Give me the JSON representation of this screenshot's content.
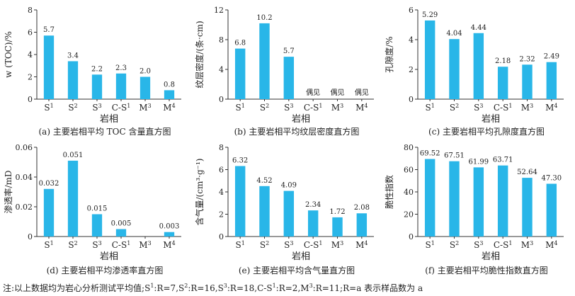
{
  "figure": {
    "bar_color": "#29b6e8",
    "note": {
      "prefix": "注:以上数据均为岩心分析测试平均值;",
      "entries": [
        {
          "base": "S",
          "sup": "1",
          "text": ":R=7,"
        },
        {
          "base": "S",
          "sup": "2",
          "text": ":R=16,"
        },
        {
          "base": "S",
          "sup": "3",
          "text": ":R=18,"
        },
        {
          "base": "C-S",
          "sup": "1",
          "text": ":R=2,"
        },
        {
          "base": "M",
          "sup": "3",
          "text": ":R=11;"
        }
      ],
      "suffix": "R=a 表示样品数为 a"
    }
  },
  "chart_data": [
    {
      "type": "bar",
      "caption": "(a) 主要岩相平均 TOC 含量直方图",
      "ylabel": "w (TOC)/%",
      "xlabel": "岩相",
      "categories": [
        {
          "base": "S",
          "sup": "1"
        },
        {
          "base": "S",
          "sup": "2"
        },
        {
          "base": "S",
          "sup": "3"
        },
        {
          "base": "C-S",
          "sup": "1"
        },
        {
          "base": "M",
          "sup": "3"
        },
        {
          "base": "M",
          "sup": "4"
        }
      ],
      "values": [
        5.7,
        3.4,
        2.2,
        2.3,
        2.0,
        0.8
      ],
      "labels": [
        "5.7",
        "3.4",
        "2.2",
        "2.3",
        "2.0",
        "0.8"
      ],
      "ylim": [
        0,
        8
      ],
      "yticks": [
        0,
        2,
        4,
        6,
        8
      ],
      "ytick_labels": [
        "0",
        "2",
        "4",
        "6",
        "8"
      ]
    },
    {
      "type": "bar",
      "caption": "(b) 主要岩相平均纹层密度直方图",
      "ylabel": "纹层密度/(条·cm)",
      "xlabel": "岩相",
      "categories": [
        {
          "base": "S",
          "sup": "1"
        },
        {
          "base": "S",
          "sup": "2"
        },
        {
          "base": "S",
          "sup": "3"
        },
        {
          "base": "C-S",
          "sup": "1"
        },
        {
          "base": "M",
          "sup": "3"
        },
        {
          "base": "M",
          "sup": "4"
        }
      ],
      "values": [
        6.8,
        10.2,
        5.7,
        null,
        null,
        null
      ],
      "labels": [
        "6.8",
        "10.2",
        "5.7",
        "偶见",
        "偶见",
        "偶见"
      ],
      "ylim": [
        0,
        12
      ],
      "yticks": [
        0,
        4,
        8,
        12
      ],
      "ytick_labels": [
        "0",
        "4",
        "8",
        "12"
      ]
    },
    {
      "type": "bar",
      "caption": "(c) 主要岩相平均孔隙度直方图",
      "ylabel": "孔隙度/%",
      "xlabel": "岩相",
      "categories": [
        {
          "base": "S",
          "sup": "1"
        },
        {
          "base": "S",
          "sup": "2"
        },
        {
          "base": "S",
          "sup": "3"
        },
        {
          "base": "C-S",
          "sup": "1"
        },
        {
          "base": "M",
          "sup": "3"
        },
        {
          "base": "M",
          "sup": "4"
        }
      ],
      "values": [
        5.29,
        4.04,
        4.44,
        2.18,
        2.32,
        2.49
      ],
      "labels": [
        "5.29",
        "4.04",
        "4.44",
        "2.18",
        "2.32",
        "2.49"
      ],
      "ylim": [
        0,
        6
      ],
      "yticks": [
        0,
        2,
        4,
        6
      ],
      "ytick_labels": [
        "0",
        "2",
        "4",
        "6"
      ]
    },
    {
      "type": "bar",
      "caption": "(d) 主要岩相平均渗透率直方图",
      "ylabel": "渗透率/mD",
      "xlabel": "岩相",
      "categories": [
        {
          "base": "S",
          "sup": "1"
        },
        {
          "base": "S",
          "sup": "2"
        },
        {
          "base": "S",
          "sup": "3"
        },
        {
          "base": "C-S",
          "sup": "1"
        },
        {
          "base": "M",
          "sup": "3"
        },
        {
          "base": "M",
          "sup": "4"
        }
      ],
      "values": [
        0.032,
        0.051,
        0.015,
        0.005,
        null,
        0.003
      ],
      "labels": [
        "0.032",
        "0.051",
        "0.015",
        "0.005",
        "",
        "0.003"
      ],
      "ylim": [
        0,
        0.06
      ],
      "yticks": [
        0,
        0.02,
        0.04,
        0.06
      ],
      "ytick_labels": [
        "0",
        "0.02",
        "0.04",
        "0.06"
      ]
    },
    {
      "type": "bar",
      "caption": "(e) 主要岩相平均含气量直方图",
      "ylabel": "含气量/(cm³·g⁻¹)",
      "xlabel": "岩相",
      "categories": [
        {
          "base": "S",
          "sup": "1"
        },
        {
          "base": "S",
          "sup": "2"
        },
        {
          "base": "S",
          "sup": "3"
        },
        {
          "base": "C-S",
          "sup": "1"
        },
        {
          "base": "M",
          "sup": "3"
        },
        {
          "base": "M",
          "sup": "4"
        }
      ],
      "values": [
        6.32,
        4.52,
        4.09,
        2.34,
        1.72,
        2.08
      ],
      "labels": [
        "6.32",
        "4.52",
        "4.09",
        "2.34",
        "1.72",
        "2.08"
      ],
      "ylim": [
        0,
        8
      ],
      "yticks": [
        0,
        2,
        4,
        6,
        8
      ],
      "ytick_labels": [
        "0",
        "2",
        "4",
        "6",
        "8"
      ]
    },
    {
      "type": "bar",
      "caption": "(f) 主要岩相平均脆性指数直方图",
      "ylabel": "脆性指数",
      "xlabel": "岩相",
      "categories": [
        {
          "base": "S",
          "sup": "1"
        },
        {
          "base": "S",
          "sup": "2"
        },
        {
          "base": "S",
          "sup": "3"
        },
        {
          "base": "C-S",
          "sup": "1"
        },
        {
          "base": "M",
          "sup": "3"
        },
        {
          "base": "M",
          "sup": "4"
        }
      ],
      "values": [
        69.52,
        67.51,
        61.99,
        63.71,
        52.64,
        47.3
      ],
      "labels": [
        "69.52",
        "67.51",
        "61.99",
        "63.71",
        "52.64",
        "47.30"
      ],
      "ylim": [
        0,
        80
      ],
      "yticks": [
        0,
        20,
        40,
        60,
        80
      ],
      "ytick_labels": [
        "0",
        "20",
        "40",
        "60",
        "80"
      ]
    }
  ]
}
